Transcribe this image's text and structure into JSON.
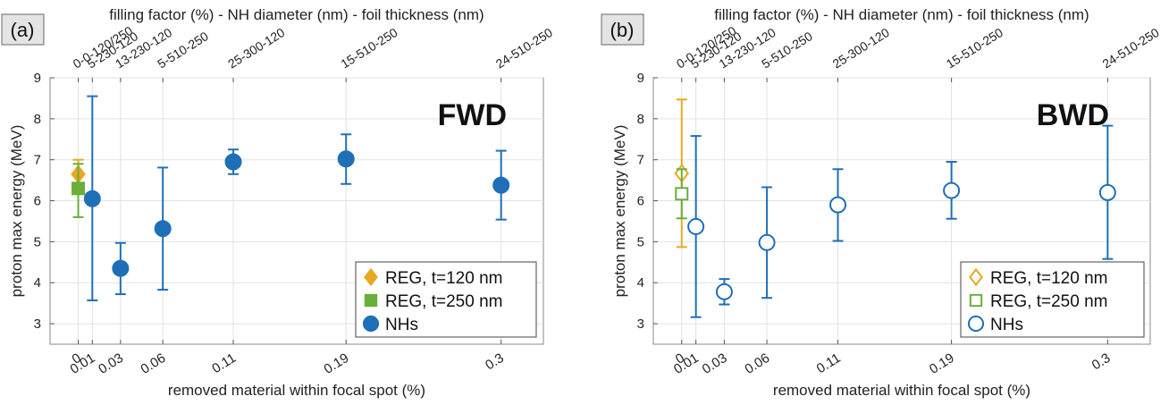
{
  "colors": {
    "reg120": "#E8A820",
    "reg250": "#6AAF3A",
    "nh": "#1F6FB8"
  },
  "chart_data": [
    {
      "type": "scatter",
      "panel_tag": "(a)",
      "direction_label": "FWD",
      "filled_markers": true,
      "xlabel": "removed material within focal spot (%)",
      "ylabel": "proton max energy (MeV)",
      "top_xlabel": "filling factor (%) - NH diameter (nm) - foil thickness (nm)",
      "xlim": [
        -0.02,
        0.33
      ],
      "ylim": [
        2.5,
        9
      ],
      "yticks": [
        "3",
        "4",
        "5",
        "6",
        "7",
        "8",
        "9"
      ],
      "xticks": [
        {
          "x": 0,
          "label": "0"
        },
        {
          "x": 0.01,
          "label": "0.01"
        },
        {
          "x": 0.03,
          "label": "0.03"
        },
        {
          "x": 0.06,
          "label": "0.06"
        },
        {
          "x": 0.11,
          "label": "0.11"
        },
        {
          "x": 0.19,
          "label": "0.19"
        },
        {
          "x": 0.3,
          "label": "0.3"
        }
      ],
      "top_ticks": [
        {
          "x": 0,
          "label": "0-0-120/250"
        },
        {
          "x": 0.01,
          "label": "5-230-120"
        },
        {
          "x": 0.03,
          "label": "13-230-120"
        },
        {
          "x": 0.06,
          "label": "5-510-250"
        },
        {
          "x": 0.11,
          "label": "25-300-120"
        },
        {
          "x": 0.19,
          "label": "15-510-250"
        },
        {
          "x": 0.3,
          "label": "24-510-250"
        }
      ],
      "legend": [
        "REG, t=120 nm",
        "REG, t=250 nm",
        "NHs"
      ],
      "grid": true,
      "legend_position": "bottom-right",
      "series": [
        {
          "name": "REG, t=120 nm",
          "marker": "diamond",
          "points": [
            {
              "x": 0,
              "y": 6.65,
              "ylow": 6.3,
              "yhigh": 7.0
            }
          ]
        },
        {
          "name": "REG, t=250 nm",
          "marker": "square",
          "points": [
            {
              "x": 0,
              "y": 6.3,
              "ylow": 5.6,
              "yhigh": 6.9
            }
          ]
        },
        {
          "name": "NHs",
          "marker": "circle",
          "points": [
            {
              "x": 0.01,
              "y": 6.05,
              "ylow": 3.57,
              "yhigh": 8.55
            },
            {
              "x": 0.03,
              "y": 4.35,
              "ylow": 3.72,
              "yhigh": 4.97
            },
            {
              "x": 0.06,
              "y": 5.32,
              "ylow": 3.83,
              "yhigh": 6.81
            },
            {
              "x": 0.11,
              "y": 6.95,
              "ylow": 6.65,
              "yhigh": 7.25
            },
            {
              "x": 0.19,
              "y": 7.02,
              "ylow": 6.41,
              "yhigh": 7.62
            },
            {
              "x": 0.3,
              "y": 6.38,
              "ylow": 5.54,
              "yhigh": 7.22
            }
          ]
        }
      ]
    },
    {
      "type": "scatter",
      "panel_tag": "(b)",
      "direction_label": "BWD",
      "filled_markers": false,
      "xlabel": "removed material within focal spot (%)",
      "ylabel": "proton max energy (MeV)",
      "top_xlabel": "filling factor (%) - NH diameter (nm) - foil thickness (nm)",
      "xlim": [
        -0.02,
        0.33
      ],
      "ylim": [
        2.5,
        9
      ],
      "yticks": [
        "3",
        "4",
        "5",
        "6",
        "7",
        "8",
        "9"
      ],
      "xticks": [
        {
          "x": 0,
          "label": "0"
        },
        {
          "x": 0.01,
          "label": "0.01"
        },
        {
          "x": 0.03,
          "label": "0.03"
        },
        {
          "x": 0.06,
          "label": "0.06"
        },
        {
          "x": 0.11,
          "label": "0.11"
        },
        {
          "x": 0.19,
          "label": "0.19"
        },
        {
          "x": 0.3,
          "label": "0.3"
        }
      ],
      "top_ticks": [
        {
          "x": 0,
          "label": "0-0-120/250"
        },
        {
          "x": 0.01,
          "label": "5-230-120"
        },
        {
          "x": 0.03,
          "label": "13-230-120"
        },
        {
          "x": 0.06,
          "label": "5-510-250"
        },
        {
          "x": 0.11,
          "label": "25-300-120"
        },
        {
          "x": 0.19,
          "label": "15-510-250"
        },
        {
          "x": 0.3,
          "label": "24-510-250"
        }
      ],
      "legend": [
        "REG, t=120 nm",
        "REG, t=250 nm",
        "NHs"
      ],
      "grid": true,
      "legend_position": "bottom-right",
      "series": [
        {
          "name": "REG, t=120 nm",
          "marker": "diamond",
          "points": [
            {
              "x": 0,
              "y": 6.67,
              "ylow": 4.87,
              "yhigh": 8.47
            }
          ]
        },
        {
          "name": "REG, t=250 nm",
          "marker": "square",
          "points": [
            {
              "x": 0,
              "y": 6.17,
              "ylow": 5.57,
              "yhigh": 6.77
            }
          ]
        },
        {
          "name": "NHs",
          "marker": "circle",
          "points": [
            {
              "x": 0.01,
              "y": 5.37,
              "ylow": 3.16,
              "yhigh": 7.58
            },
            {
              "x": 0.03,
              "y": 3.78,
              "ylow": 3.47,
              "yhigh": 4.09
            },
            {
              "x": 0.06,
              "y": 4.98,
              "ylow": 3.63,
              "yhigh": 6.33
            },
            {
              "x": 0.11,
              "y": 5.9,
              "ylow": 5.02,
              "yhigh": 6.77
            },
            {
              "x": 0.19,
              "y": 6.25,
              "ylow": 5.56,
              "yhigh": 6.95
            },
            {
              "x": 0.3,
              "y": 6.2,
              "ylow": 4.58,
              "yhigh": 7.83
            }
          ]
        }
      ]
    }
  ]
}
